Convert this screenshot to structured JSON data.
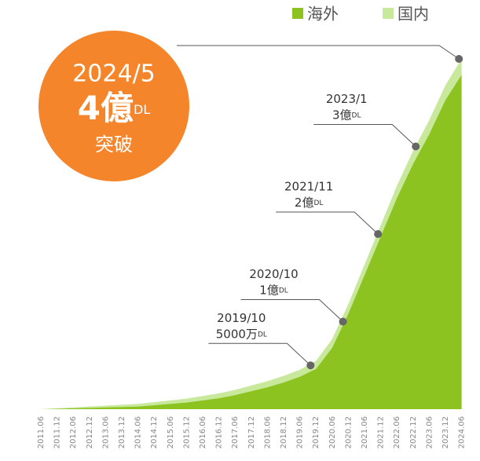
{
  "chart_data": {
    "type": "stacked-area",
    "categories": [
      "2011.06",
      "2011.12",
      "2012.06",
      "2012.12",
      "2013.06",
      "2013.12",
      "2014.06",
      "2014.12",
      "2015.06",
      "2015.12",
      "2016.06",
      "2016.12",
      "2017.06",
      "2017.12",
      "2018.06",
      "2018.12",
      "2019.06",
      "2019.12",
      "2020.06",
      "2020.12",
      "2021.06",
      "2021.12",
      "2022.06",
      "2022.12",
      "2023.06",
      "2023.12",
      "2024.06"
    ],
    "series": [
      {
        "name": "海外",
        "color": "#8cc320",
        "values": [
          0,
          0.005,
          0.01,
          0.015,
          0.02,
          0.025,
          0.03,
          0.045,
          0.06,
          0.075,
          0.1,
          0.125,
          0.16,
          0.205,
          0.25,
          0.305,
          0.37,
          0.46,
          0.7,
          1.09,
          1.53,
          1.97,
          2.41,
          2.8,
          3.14,
          3.53,
          3.82
        ]
      },
      {
        "name": "国内",
        "color": "#c8e89c",
        "values": [
          0,
          0.005,
          0.01,
          0.015,
          0.02,
          0.025,
          0.03,
          0.035,
          0.04,
          0.045,
          0.05,
          0.055,
          0.06,
          0.065,
          0.07,
          0.075,
          0.08,
          0.09,
          0.1,
          0.11,
          0.12,
          0.13,
          0.14,
          0.15,
          0.16,
          0.17,
          0.18
        ]
      }
    ],
    "ylim": [
      0,
      4
    ],
    "milestones": [
      {
        "date": "2019/10",
        "amount": "5000万",
        "unit": "DL",
        "value": 0.5
      },
      {
        "date": "2020/10",
        "amount": "1億",
        "unit": "DL",
        "value": 1
      },
      {
        "date": "2021/11",
        "amount": "2億",
        "unit": "DL",
        "value": 2
      },
      {
        "date": "2023/1",
        "amount": "3億",
        "unit": "DL",
        "value": 3
      }
    ],
    "headline": {
      "date": "2024/5",
      "amount": "4億",
      "unit": "DL",
      "note": "突破",
      "value": 4,
      "color": "#f5852a"
    }
  }
}
